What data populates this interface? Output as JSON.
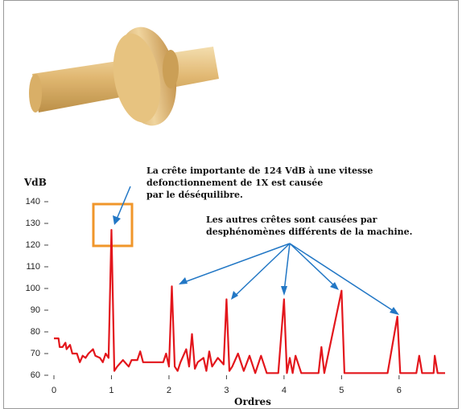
{
  "chart_data": {
    "type": "line",
    "y_label": "VdB",
    "x_label": "Ordres",
    "annotations": [
      {
        "lines": [
          "La crête importante de 124 VdB à une vitesse",
          "defonctionnement de 1X est causée",
          "par le déséquilibre."
        ]
      },
      {
        "lines": [
          "Les autres crêtes sont causées par",
          "desphénomènes différents de la machine."
        ]
      }
    ],
    "xlim": [
      0,
      6.8
    ],
    "ylim": [
      60,
      140
    ],
    "xticks": [
      0,
      1,
      2,
      3,
      4,
      5,
      6
    ],
    "yticks": [
      60,
      70,
      80,
      90,
      100,
      110,
      120,
      130,
      140
    ],
    "series": [
      {
        "color": "#e3161c",
        "x": [
          0,
          0.08,
          0.1,
          0.15,
          0.2,
          0.22,
          0.28,
          0.32,
          0.4,
          0.45,
          0.5,
          0.55,
          0.6,
          0.68,
          0.72,
          0.8,
          0.85,
          0.9,
          0.95,
          1.0,
          1.05,
          1.1,
          1.2,
          1.3,
          1.35,
          1.45,
          1.5,
          1.55,
          1.9,
          1.95,
          2.0,
          2.05,
          2.1,
          2.15,
          2.2,
          2.3,
          2.35,
          2.4,
          2.45,
          2.5,
          2.6,
          2.65,
          2.7,
          2.75,
          2.85,
          2.95,
          3.0,
          3.05,
          3.1,
          3.2,
          3.3,
          3.4,
          3.5,
          3.6,
          3.7,
          3.9,
          4.0,
          4.05,
          4.1,
          4.15,
          4.2,
          4.3,
          4.6,
          4.65,
          4.7,
          5.0,
          5.05,
          5.8,
          5.97,
          6.02,
          6.3,
          6.35,
          6.4,
          6.6,
          6.62,
          6.67,
          6.8
        ],
        "values": [
          77,
          77,
          73,
          73,
          75,
          72,
          74,
          70,
          70,
          66,
          69,
          68,
          70,
          72,
          69,
          68,
          66,
          70,
          68,
          127,
          62,
          64,
          67,
          64,
          67,
          67,
          71,
          66,
          66,
          70,
          64,
          101,
          64,
          62,
          66,
          72,
          64,
          79,
          63,
          66,
          68,
          62,
          71,
          64,
          68,
          65,
          95,
          62,
          64,
          70,
          62,
          69,
          61,
          69,
          61,
          61,
          95,
          61,
          68,
          61,
          69,
          61,
          61,
          73,
          61,
          99,
          61,
          61,
          87,
          61,
          61,
          69,
          61,
          61,
          69,
          61,
          61
        ]
      }
    ]
  }
}
